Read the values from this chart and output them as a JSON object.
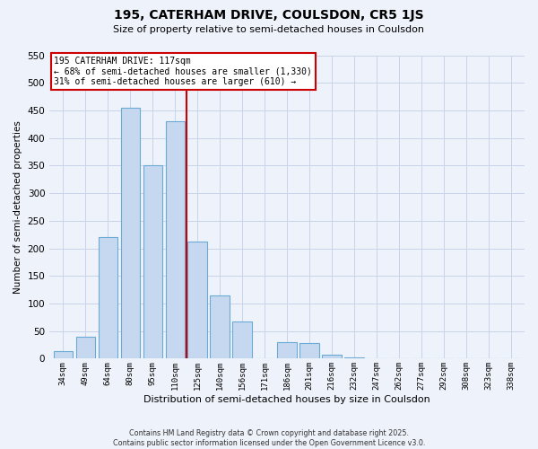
{
  "title": "195, CATERHAM DRIVE, COULSDON, CR5 1JS",
  "subtitle": "Size of property relative to semi-detached houses in Coulsdon",
  "bar_labels": [
    "34sqm",
    "49sqm",
    "64sqm",
    "80sqm",
    "95sqm",
    "110sqm",
    "125sqm",
    "140sqm",
    "156sqm",
    "171sqm",
    "186sqm",
    "201sqm",
    "216sqm",
    "232sqm",
    "247sqm",
    "262sqm",
    "277sqm",
    "292sqm",
    "308sqm",
    "323sqm",
    "338sqm"
  ],
  "bar_values": [
    13,
    40,
    220,
    455,
    350,
    430,
    213,
    115,
    67,
    0,
    30,
    28,
    7,
    3,
    0,
    0,
    0,
    0,
    0,
    0,
    1
  ],
  "bar_color": "#c5d8f0",
  "bar_edge_color": "#6aaad4",
  "ylim": [
    0,
    550
  ],
  "yticks": [
    0,
    50,
    100,
    150,
    200,
    250,
    300,
    350,
    400,
    450,
    500,
    550
  ],
  "ylabel": "Number of semi-detached properties",
  "xlabel": "Distribution of semi-detached houses by size in Coulsdon",
  "vline_x": 5.5,
  "vline_color": "#cc0000",
  "annotation_title": "195 CATERHAM DRIVE: 117sqm",
  "annotation_line1": "← 68% of semi-detached houses are smaller (1,330)",
  "annotation_line2": "31% of semi-detached houses are larger (610) →",
  "annotation_box_color": "#ffffff",
  "annotation_box_edge": "#cc0000",
  "footnote1": "Contains HM Land Registry data © Crown copyright and database right 2025.",
  "footnote2": "Contains public sector information licensed under the Open Government Licence v3.0.",
  "grid_color": "#c8d4e8",
  "background_color": "#eef2fa"
}
